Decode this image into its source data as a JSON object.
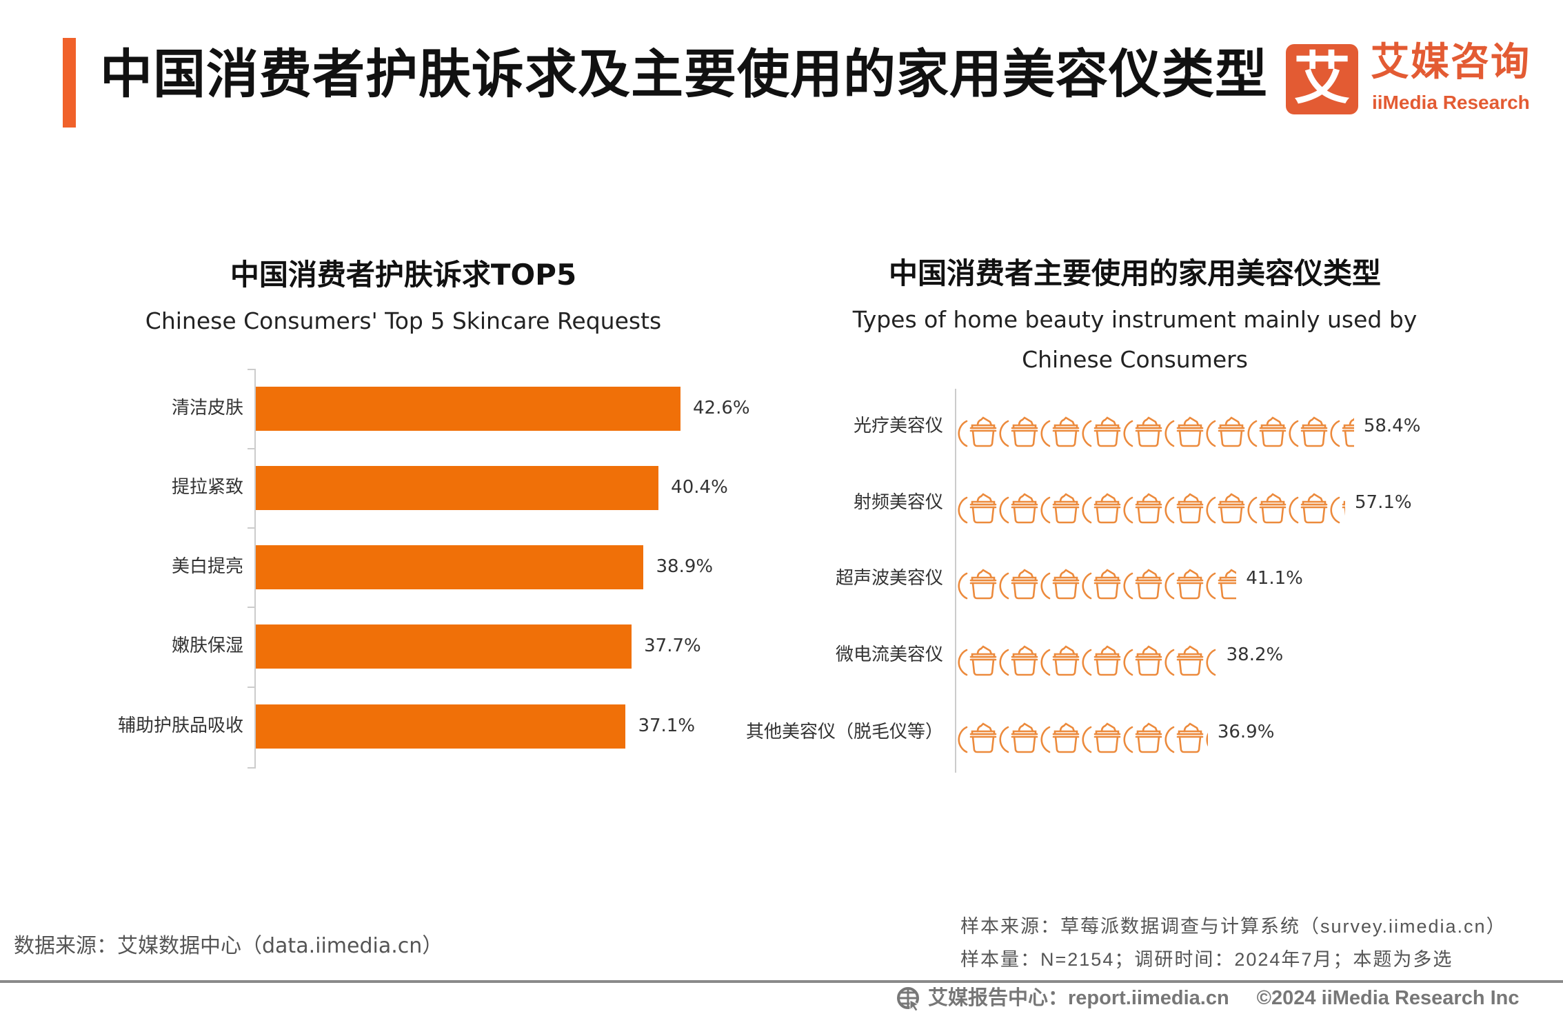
{
  "header": {
    "title": "中国消费者护肤诉求及主要使用的家用美容仪类型"
  },
  "logo": {
    "glyph": "艾",
    "cn": "艾媒咨询",
    "en": "iiMedia Research"
  },
  "colors": {
    "accent": "#f0612a",
    "bar": "#f07008",
    "icon": "#ec8a3c",
    "logo": "#e35b33"
  },
  "chart_data": [
    {
      "type": "bar",
      "orientation": "horizontal",
      "title": "中国消费者护肤诉求TOP5",
      "subtitle": "Chinese Consumers' Top 5 Skincare Requests",
      "categories": [
        "清洁皮肤",
        "提拉紧致",
        "美白提亮",
        "嫩肤保湿",
        "辅助护肤品吸收"
      ],
      "values": [
        42.6,
        40.4,
        38.9,
        37.7,
        37.1
      ],
      "labels": [
        "42.6%",
        "40.4%",
        "38.9%",
        "37.7%",
        "37.1%"
      ],
      "unit": "%"
    },
    {
      "type": "bar",
      "style": "pictogram",
      "icon": "cream-jar-icon",
      "title": "中国消费者主要使用的家用美容仪类型",
      "subtitle": [
        "Types of home beauty instrument mainly used by",
        "Chinese Consumers"
      ],
      "categories": [
        "光疗美容仪",
        "射频美容仪",
        "超声波美容仪",
        "微电流美容仪",
        "其他美容仪（脱毛仪等）"
      ],
      "values": [
        58.4,
        57.1,
        41.1,
        38.2,
        36.9
      ],
      "labels": [
        "58.4%",
        "57.1%",
        "41.1%",
        "38.2%",
        "36.9%"
      ],
      "unit": "%"
    }
  ],
  "footer": {
    "source": "数据来源：艾媒数据中心（data.iimedia.cn）",
    "sample_source": "样本来源：草莓派数据调查与计算系统（survey.iimedia.cn）",
    "sample_info": "样本量：N=2154；调研时间：2024年7月；本题为多选",
    "report_center": "艾媒报告中心：report.iimedia.cn",
    "copyright": "©2024  iiMedia Research  Inc"
  }
}
